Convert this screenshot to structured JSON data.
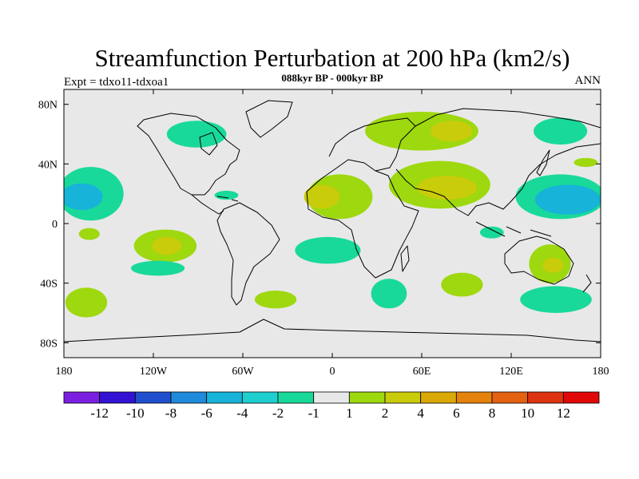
{
  "chart_data": {
    "type": "heatmap",
    "title": "Streamfunction Perturbation at 200 hPa (km2/s)",
    "left_label": "Expt = tdxo11-tdxoa1",
    "center_label": "088kyr BP - 000kyr BP",
    "right_label": "ANN",
    "x_range": [
      -180,
      180
    ],
    "y_range": [
      -90,
      90
    ],
    "x_ticks": [
      {
        "value": -180,
        "label": "180"
      },
      {
        "value": -120,
        "label": "120W"
      },
      {
        "value": -60,
        "label": "60W"
      },
      {
        "value": 0,
        "label": "0"
      },
      {
        "value": 60,
        "label": "60E"
      },
      {
        "value": 120,
        "label": "120E"
      },
      {
        "value": 180,
        "label": "180"
      }
    ],
    "y_ticks": [
      {
        "value": 80,
        "label": "80N"
      },
      {
        "value": 40,
        "label": "40N"
      },
      {
        "value": 0,
        "label": "0"
      },
      {
        "value": -40,
        "label": "40S"
      },
      {
        "value": -80,
        "label": "80S"
      }
    ],
    "colorbar": {
      "colors": [
        "#7b1fe0",
        "#3412d4",
        "#1f4fcc",
        "#1f8ad9",
        "#17b3d9",
        "#1fcfd0",
        "#19d99a",
        "#e8e8e8",
        "#9ed80f",
        "#c9cc0a",
        "#dba905",
        "#e5820c",
        "#e4620f",
        "#de3310",
        "#e00808"
      ],
      "labels": [
        "-12",
        "-10",
        "-8",
        "-6",
        "-4",
        "-2",
        "-1",
        "1",
        "2",
        "4",
        "6",
        "8",
        "10",
        "12"
      ]
    },
    "regions": [
      {
        "level": -2,
        "center": [
          -162,
          20
        ],
        "radius": [
          22,
          18
        ]
      },
      {
        "level": -4,
        "center": [
          -168,
          18
        ],
        "radius": [
          14,
          9
        ]
      },
      {
        "level": -2,
        "center": [
          -91,
          60
        ],
        "radius": [
          20,
          9
        ]
      },
      {
        "level": -2,
        "center": [
          -71,
          19
        ],
        "radius": [
          8,
          3
        ]
      },
      {
        "level": 2,
        "center": [
          -163,
          -7
        ],
        "radius": [
          7,
          4
        ]
      },
      {
        "level": 2,
        "center": [
          -112,
          -15
        ],
        "radius": [
          21,
          11
        ]
      },
      {
        "level": 4,
        "center": [
          -111,
          -15
        ],
        "radius": [
          10,
          6
        ]
      },
      {
        "level": -2,
        "center": [
          -117,
          -30
        ],
        "radius": [
          18,
          5
        ]
      },
      {
        "level": 2,
        "center": [
          -165,
          -53
        ],
        "radius": [
          14,
          10
        ]
      },
      {
        "level": -2,
        "center": [
          -3,
          -18
        ],
        "radius": [
          22,
          9
        ]
      },
      {
        "level": 2,
        "center": [
          -38,
          -51
        ],
        "radius": [
          14,
          6
        ]
      },
      {
        "level": 2,
        "center": [
          5,
          18
        ],
        "radius": [
          22,
          15
        ]
      },
      {
        "level": 4,
        "center": [
          -7,
          18
        ],
        "radius": [
          12,
          8
        ]
      },
      {
        "level": 2,
        "center": [
          72,
          26
        ],
        "radius": [
          34,
          16
        ]
      },
      {
        "level": 2,
        "center": [
          60,
          62
        ],
        "radius": [
          38,
          13
        ]
      },
      {
        "level": 4,
        "center": [
          77,
          24
        ],
        "radius": [
          20,
          8
        ]
      },
      {
        "level": 4,
        "center": [
          80,
          62
        ],
        "radius": [
          14,
          7
        ]
      },
      {
        "level": -2,
        "center": [
          153,
          62
        ],
        "radius": [
          18,
          9
        ]
      },
      {
        "level": 2,
        "center": [
          170,
          41
        ],
        "radius": [
          8,
          3
        ]
      },
      {
        "level": -2,
        "center": [
          153,
          18
        ],
        "radius": [
          30,
          15
        ]
      },
      {
        "level": -4,
        "center": [
          158,
          16
        ],
        "radius": [
          22,
          10
        ]
      },
      {
        "level": -2,
        "center": [
          107,
          -6
        ],
        "radius": [
          8,
          4
        ]
      },
      {
        "level": 2,
        "center": [
          146,
          -27
        ],
        "radius": [
          14,
          13
        ]
      },
      {
        "level": 4,
        "center": [
          148,
          -28
        ],
        "radius": [
          7,
          5
        ]
      },
      {
        "level": -2,
        "center": [
          38,
          -47
        ],
        "radius": [
          12,
          10
        ]
      },
      {
        "level": 2,
        "center": [
          87,
          -41
        ],
        "radius": [
          14,
          8
        ]
      },
      {
        "level": -2,
        "center": [
          150,
          -51
        ],
        "radius": [
          24,
          9
        ]
      }
    ]
  }
}
